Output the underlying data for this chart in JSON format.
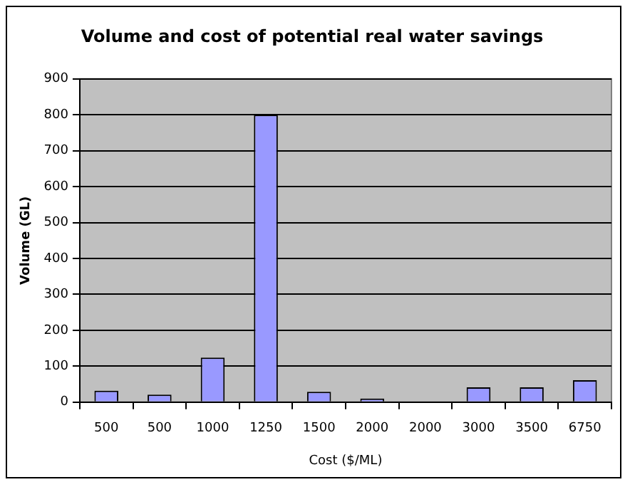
{
  "chart_data": {
    "type": "bar",
    "title": "Volume and cost of potential real water savings",
    "xlabel": "Cost ($/ML)",
    "ylabel": "Volume (GL)",
    "categories": [
      "500",
      "500",
      "1000",
      "1250",
      "1500",
      "2000",
      "2000",
      "3000",
      "3500",
      "6750"
    ],
    "values": [
      32,
      21,
      124,
      800,
      29,
      10,
      0,
      41,
      41,
      61
    ],
    "color": "#9999ff",
    "ylim": [
      0,
      900
    ],
    "yticks": [
      0,
      100,
      200,
      300,
      400,
      500,
      600,
      700,
      800,
      900
    ],
    "grid": "y",
    "legend": false
  }
}
